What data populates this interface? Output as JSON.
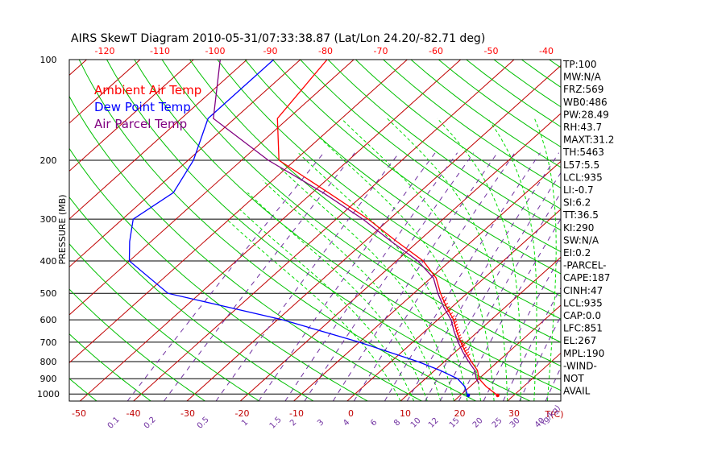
{
  "chart_data": {
    "type": "line",
    "title": "AIRS SkewT Diagram 2010-05-31/07:33:38.87 (Lat/Lon 24.20/-82.71 deg)",
    "ylabel": "PRESSURE (MB)",
    "xlabel": "T(C)",
    "mixing_unit": "(g/kg)",
    "pressure_levels": [
      100,
      200,
      300,
      400,
      500,
      600,
      700,
      800,
      900,
      1000
    ],
    "ylim": [
      1050,
      100
    ],
    "xlim_bottom": [
      -52,
      40
    ],
    "top_ticks": [
      -120,
      -110,
      -100,
      -90,
      -80,
      -70,
      -60,
      -50,
      -40
    ],
    "bottom_ticks": [
      -50,
      -40,
      -30,
      -20,
      -10,
      0,
      10,
      20,
      30
    ],
    "mixing_ratios": [
      "0.1",
      "0.2",
      "0.5",
      "1",
      "1.5",
      "2",
      "3",
      "4",
      "6",
      "8",
      "10",
      "12",
      "15",
      "20",
      "25",
      "30",
      "40"
    ],
    "grid": true,
    "legend": [
      {
        "name": "Ambient Air Temp",
        "color": "#ff0000"
      },
      {
        "name": "Dew Point Temp",
        "color": "#0000ff"
      },
      {
        "name": "Air Parcel Temp",
        "color": "#800080"
      }
    ],
    "series": [
      {
        "name": "Ambient Air Temp",
        "color": "#ff0000",
        "points": [
          [
            100,
            -75
          ],
          [
            150,
            -72
          ],
          [
            200,
            -63
          ],
          [
            250,
            -47
          ],
          [
            300,
            -34
          ],
          [
            350,
            -24
          ],
          [
            400,
            -15
          ],
          [
            450,
            -9
          ],
          [
            500,
            -5
          ],
          [
            550,
            -1
          ],
          [
            600,
            3
          ],
          [
            650,
            6
          ],
          [
            700,
            9
          ],
          [
            750,
            12
          ],
          [
            800,
            15
          ],
          [
            850,
            18
          ],
          [
            900,
            20
          ],
          [
            950,
            23
          ],
          [
            1010,
            27
          ]
        ]
      },
      {
        "name": "Dew Point Temp",
        "color": "#0000ff",
        "points": [
          [
            100,
            -85
          ],
          [
            150,
            -85
          ],
          [
            200,
            -79
          ],
          [
            250,
            -76
          ],
          [
            300,
            -78
          ],
          [
            350,
            -74
          ],
          [
            400,
            -70
          ],
          [
            500,
            -56
          ],
          [
            600,
            -29
          ],
          [
            700,
            -10
          ],
          [
            800,
            5
          ],
          [
            850,
            11
          ],
          [
            900,
            16
          ],
          [
            950,
            19
          ],
          [
            1000,
            21
          ],
          [
            1010,
            21.5
          ]
        ]
      },
      {
        "name": "Air Parcel Temp",
        "color": "#800080",
        "points": [
          [
            100,
            -95
          ],
          [
            150,
            -84
          ],
          [
            200,
            -65
          ],
          [
            250,
            -48
          ],
          [
            300,
            -35
          ],
          [
            350,
            -25
          ],
          [
            400,
            -16
          ],
          [
            450,
            -9.5
          ],
          [
            500,
            -5.5
          ],
          [
            550,
            -1.5
          ],
          [
            600,
            2.5
          ],
          [
            650,
            5.5
          ],
          [
            700,
            8.5
          ],
          [
            750,
            11.5
          ],
          [
            800,
            14.5
          ],
          [
            850,
            17.5
          ],
          [
            900,
            19.5
          ],
          [
            930,
            21
          ]
        ]
      }
    ],
    "indices": [
      "TP:100",
      "MW:N/A",
      "FRZ:569",
      "WB0:486",
      "PW:28.49",
      "RH:43.7",
      "MAXT:31.2",
      "TH:5463",
      "L57:5.5",
      "LCL:935",
      "LI:-0.7",
      "SI:6.2",
      "TT:36.5",
      "KI:290",
      "SW:N/A",
      "EI:0.2",
      "-PARCEL-",
      "CAPE:187",
      "CINH:47",
      "LCL:935",
      "CAP:0.0",
      "LFC:851",
      "EL:267",
      "MPL:190",
      "-WIND-",
      "NOT",
      "AVAIL"
    ]
  },
  "colors": {
    "isotherm": "#c00000",
    "dry_adiabat": "#00c000",
    "moist_adiabat": "#00dd00",
    "mixing_ratio": "#7030a0",
    "axis_top": "#ff0000",
    "axis_bottom": "#c00000"
  }
}
